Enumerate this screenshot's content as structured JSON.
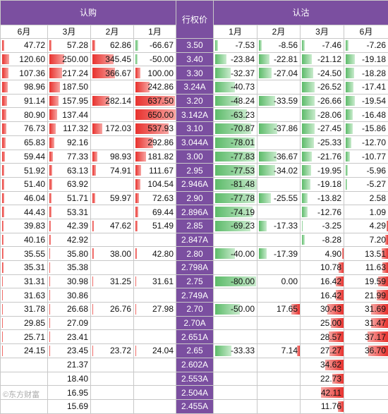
{
  "header": {
    "call_label": "认购",
    "strike_label": "行权价",
    "put_label": "认沽",
    "call_months": [
      "6月",
      "3月",
      "2月",
      "1月"
    ],
    "put_months": [
      "1月",
      "2月",
      "3月",
      "6月"
    ]
  },
  "watermark": "©东方财富",
  "rows": [
    {
      "strike": "3.50",
      "calls": [
        "47.72",
        "57.28",
        "62.86",
        "-66.67"
      ],
      "puts": [
        "-7.53",
        "-8.56",
        "-7.46",
        "-7.26"
      ]
    },
    {
      "strike": "3.40",
      "calls": [
        "120.60",
        "250.00",
        "345.45",
        "-50.00"
      ],
      "puts": [
        "-23.84",
        "-22.81",
        "-21.12",
        "-19.18"
      ]
    },
    {
      "strike": "3.30",
      "calls": [
        "107.36",
        "217.24",
        "366.67",
        "100.00"
      ],
      "puts": [
        "-32.37",
        "-27.04",
        "-24.50",
        "-18.28"
      ]
    },
    {
      "strike": "3.24A",
      "calls": [
        "98.96",
        "187.50",
        "",
        "242.86"
      ],
      "puts": [
        "-40.73",
        "",
        "-26.52",
        "-17.41"
      ]
    },
    {
      "strike": "3.20",
      "calls": [
        "91.14",
        "157.95",
        "282.14",
        "637.50"
      ],
      "puts": [
        "-48.24",
        "-33.59",
        "-26.66",
        "-19.54"
      ]
    },
    {
      "strike": "3.142A",
      "calls": [
        "80.90",
        "137.44",
        "",
        "650.00"
      ],
      "puts": [
        "-63.23",
        "",
        "-28.06",
        "-16.48"
      ]
    },
    {
      "strike": "3.10",
      "calls": [
        "76.73",
        "117.32",
        "172.03",
        "537.93"
      ],
      "puts": [
        "-70.87",
        "-37.86",
        "-27.45",
        "-15.86"
      ]
    },
    {
      "strike": "3.044A",
      "calls": [
        "65.83",
        "92.16",
        "",
        "292.86"
      ],
      "puts": [
        "-78.01",
        "",
        "-25.33",
        "-12.70"
      ]
    },
    {
      "strike": "3.00",
      "calls": [
        "59.44",
        "77.33",
        "98.93",
        "181.82"
      ],
      "puts": [
        "-77.83",
        "-36.67",
        "-21.76",
        "-10.77"
      ]
    },
    {
      "strike": "2.95",
      "calls": [
        "51.92",
        "63.13",
        "74.91",
        "111.67"
      ],
      "puts": [
        "-77.53",
        "-34.02",
        "-19.95",
        "-5.96"
      ]
    },
    {
      "strike": "2.946A",
      "calls": [
        "51.40",
        "63.92",
        "",
        "104.54"
      ],
      "puts": [
        "-81.48",
        "",
        "-19.18",
        "-5.27"
      ]
    },
    {
      "strike": "2.90",
      "calls": [
        "46.04",
        "51.71",
        "59.97",
        "72.63"
      ],
      "puts": [
        "-77.78",
        "-25.55",
        "-13.82",
        "2.58"
      ]
    },
    {
      "strike": "2.896A",
      "calls": [
        "44.43",
        "53.31",
        "",
        "69.44"
      ],
      "puts": [
        "-74.19",
        "",
        "-12.76",
        "1.09"
      ]
    },
    {
      "strike": "2.85",
      "calls": [
        "39.83",
        "42.39",
        "47.62",
        "51.49"
      ],
      "puts": [
        "-69.23",
        "-17.33",
        "-3.25",
        "4.29"
      ]
    },
    {
      "strike": "2.847A",
      "calls": [
        "40.16",
        "42.92",
        "",
        ""
      ],
      "puts": [
        "",
        "",
        "-8.28",
        "7.20"
      ]
    },
    {
      "strike": "2.80",
      "calls": [
        "35.55",
        "35.80",
        "38.00",
        "42.80"
      ],
      "puts": [
        "-40.00",
        "-17.39",
        "4.90",
        "13.51"
      ]
    },
    {
      "strike": "2.798A",
      "calls": [
        "35.31",
        "35.38",
        "",
        ""
      ],
      "puts": [
        "",
        "",
        "10.78",
        "11.63"
      ]
    },
    {
      "strike": "2.75",
      "calls": [
        "31.31",
        "30.98",
        "31.25",
        "31.61"
      ],
      "puts": [
        "-80.00",
        "0.00",
        "16.42",
        "19.59"
      ]
    },
    {
      "strike": "2.749A",
      "calls": [
        "31.63",
        "30.86",
        "",
        ""
      ],
      "puts": [
        "",
        "",
        "16.42",
        "21.99"
      ]
    },
    {
      "strike": "2.70",
      "calls": [
        "31.78",
        "26.68",
        "26.76",
        "27.98"
      ],
      "puts": [
        "-50.00",
        "17.65",
        "30.43",
        "31.69"
      ]
    },
    {
      "strike": "2.70A",
      "calls": [
        "29.85",
        "27.09",
        "",
        ""
      ],
      "puts": [
        "",
        "",
        "25.00",
        "31.47"
      ]
    },
    {
      "strike": "2.651A",
      "calls": [
        "25.71",
        "23.41",
        "",
        ""
      ],
      "puts": [
        "",
        "",
        "28.57",
        "37.17"
      ]
    },
    {
      "strike": "2.65",
      "calls": [
        "24.15",
        "23.45",
        "23.72",
        "24.04"
      ],
      "puts": [
        "-33.33",
        "7.14",
        "27.27",
        "36.70"
      ]
    },
    {
      "strike": "2.602A",
      "calls": [
        "",
        "21.37",
        "",
        ""
      ],
      "puts": [
        "",
        "",
        "34.62",
        ""
      ]
    },
    {
      "strike": "2.553A",
      "calls": [
        "",
        "18.40",
        "",
        ""
      ],
      "puts": [
        "",
        "",
        "22.73",
        ""
      ]
    },
    {
      "strike": "2.504A",
      "calls": [
        "",
        "16.95",
        "",
        ""
      ],
      "puts": [
        "",
        "",
        "42.11",
        ""
      ]
    },
    {
      "strike": "2.455A",
      "calls": [
        "",
        "15.69",
        "",
        ""
      ],
      "puts": [
        "",
        "",
        "11.76",
        ""
      ]
    }
  ]
}
